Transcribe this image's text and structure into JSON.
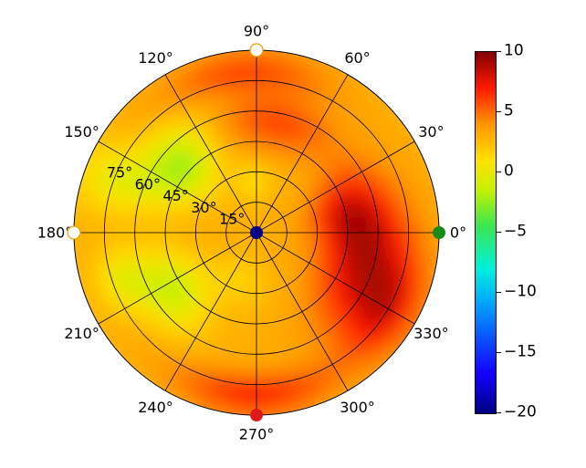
{
  "chart_data": {
    "type": "heatmap",
    "subtype": "polar",
    "title": "",
    "angle_ticks": [
      "0°",
      "30°",
      "60°",
      "90°",
      "120°",
      "150°",
      "180°",
      "210°",
      "240°",
      "270°",
      "300°",
      "330°"
    ],
    "radial_ticks": [
      "15°",
      "30°",
      "45°",
      "60°",
      "75°"
    ],
    "colorbar": {
      "min": -20,
      "max": 10,
      "ticks": [
        "10",
        "5",
        "0",
        "−5",
        "−10",
        "−15",
        "−20"
      ],
      "colormap": "jet-like (dark blue → cyan → green → yellow → orange → red → dark red)"
    },
    "grid": true,
    "field_description": "warm values (+3 to +8) in the right/lower-right sector (300°–30°) and lower outer ring (240°–300°); cooler values (−3 to 0) in the upper-left (110°–160°) and lower-left (200°–240°)",
    "markers": [
      {
        "angle_deg": 0,
        "radius_deg": 90,
        "color": "#1a8a1a"
      },
      {
        "angle_deg": 90,
        "radius_deg": 90,
        "color": "#ffffff"
      },
      {
        "angle_deg": 180,
        "radius_deg": 90,
        "color": "#ffffff"
      },
      {
        "angle_deg": 270,
        "radius_deg": 90,
        "color": "#dd1a1a"
      },
      {
        "angle_deg": 0,
        "radius_deg": 0,
        "color": "#00008b"
      }
    ]
  }
}
